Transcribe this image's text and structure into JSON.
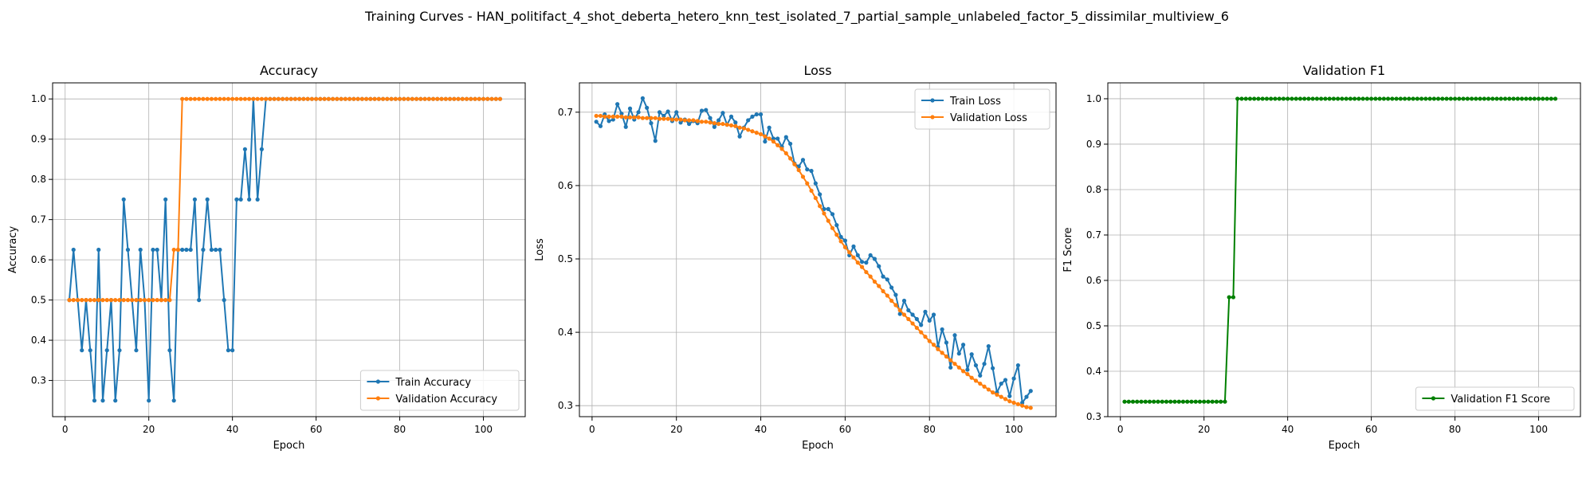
{
  "figure": {
    "title": "Training Curves - HAN_politifact_4_shot_deberta_hetero_knn_test_isolated_7_partial_sample_unlabeled_factor_5_dissimilar_multiview_6"
  },
  "colors": {
    "train": "#1f77b4",
    "validation": "#ff7f0e",
    "f1": "#008000",
    "grid": "#b0b0b0"
  },
  "chart_data": [
    {
      "type": "line",
      "title": "Accuracy",
      "xlabel": "Epoch",
      "ylabel": "Accuracy",
      "xlim": [
        -3,
        110
      ],
      "ylim": [
        0.21,
        1.04
      ],
      "xticks": [
        0,
        20,
        40,
        60,
        80,
        100
      ],
      "yticks": [
        0.3,
        0.4,
        0.5,
        0.6,
        0.7,
        0.8,
        0.9,
        1.0
      ],
      "ytick_labels": [
        "0.3",
        "0.4",
        "0.5",
        "0.6",
        "0.7",
        "0.8",
        "0.9",
        "1.0"
      ],
      "grid": true,
      "legend_position": "lower-right",
      "x": [
        1,
        2,
        3,
        4,
        5,
        6,
        7,
        8,
        9,
        10,
        11,
        12,
        13,
        14,
        15,
        16,
        17,
        18,
        19,
        20,
        21,
        22,
        23,
        24,
        25,
        26,
        27,
        28,
        29,
        30,
        31,
        32,
        33,
        34,
        35,
        36,
        37,
        38,
        39,
        40,
        41,
        42,
        43,
        44,
        45,
        46,
        47,
        48,
        49,
        50,
        51,
        52,
        53,
        54,
        55,
        56,
        57,
        58,
        59,
        60,
        61,
        62,
        63,
        64,
        65,
        66,
        67,
        68,
        69,
        70,
        71,
        72,
        73,
        74,
        75,
        76,
        77,
        78,
        79,
        80,
        81,
        82,
        83,
        84,
        85,
        86,
        87,
        88,
        89,
        90,
        91,
        92,
        93,
        94,
        95,
        96,
        97,
        98,
        99,
        100,
        101,
        102,
        103,
        104
      ],
      "series": [
        {
          "name": "Train Accuracy",
          "color": "#1f77b4",
          "values": [
            0.5,
            0.625,
            0.5,
            0.375,
            0.5,
            0.375,
            0.25,
            0.625,
            0.25,
            0.375,
            0.5,
            0.25,
            0.375,
            0.75,
            0.625,
            0.5,
            0.375,
            0.625,
            0.5,
            0.25,
            0.625,
            0.625,
            0.5,
            0.75,
            0.375,
            0.25,
            0.625,
            0.625,
            0.625,
            0.625,
            0.75,
            0.5,
            0.625,
            0.75,
            0.625,
            0.625,
            0.625,
            0.5,
            0.375,
            0.375,
            0.75,
            0.75,
            0.875,
            0.75,
            1.0,
            0.75,
            0.875,
            1.0,
            1.0,
            1.0,
            1.0,
            1.0,
            1.0,
            1.0,
            1.0,
            1.0,
            1.0,
            1.0,
            1.0,
            1.0,
            1.0,
            1.0,
            1.0,
            1.0,
            1.0,
            1.0,
            1.0,
            1.0,
            1.0,
            1.0,
            1.0,
            1.0,
            1.0,
            1.0,
            1.0,
            1.0,
            1.0,
            1.0,
            1.0,
            1.0,
            1.0,
            1.0,
            1.0,
            1.0,
            1.0,
            1.0,
            1.0,
            1.0,
            1.0,
            1.0,
            1.0,
            1.0,
            1.0,
            1.0,
            1.0,
            1.0,
            1.0,
            1.0,
            1.0,
            1.0,
            1.0,
            1.0,
            1.0,
            1.0
          ]
        },
        {
          "name": "Validation Accuracy",
          "color": "#ff7f0e",
          "values": [
            0.5,
            0.5,
            0.5,
            0.5,
            0.5,
            0.5,
            0.5,
            0.5,
            0.5,
            0.5,
            0.5,
            0.5,
            0.5,
            0.5,
            0.5,
            0.5,
            0.5,
            0.5,
            0.5,
            0.5,
            0.5,
            0.5,
            0.5,
            0.5,
            0.5,
            0.625,
            0.625,
            1.0,
            1.0,
            1.0,
            1.0,
            1.0,
            1.0,
            1.0,
            1.0,
            1.0,
            1.0,
            1.0,
            1.0,
            1.0,
            1.0,
            1.0,
            1.0,
            1.0,
            1.0,
            1.0,
            1.0,
            1.0,
            1.0,
            1.0,
            1.0,
            1.0,
            1.0,
            1.0,
            1.0,
            1.0,
            1.0,
            1.0,
            1.0,
            1.0,
            1.0,
            1.0,
            1.0,
            1.0,
            1.0,
            1.0,
            1.0,
            1.0,
            1.0,
            1.0,
            1.0,
            1.0,
            1.0,
            1.0,
            1.0,
            1.0,
            1.0,
            1.0,
            1.0,
            1.0,
            1.0,
            1.0,
            1.0,
            1.0,
            1.0,
            1.0,
            1.0,
            1.0,
            1.0,
            1.0,
            1.0,
            1.0,
            1.0,
            1.0,
            1.0,
            1.0,
            1.0,
            1.0,
            1.0,
            1.0,
            1.0,
            1.0,
            1.0,
            1.0
          ]
        }
      ]
    },
    {
      "type": "line",
      "title": "Loss",
      "xlabel": "Epoch",
      "ylabel": "Loss",
      "xlim": [
        -3,
        110
      ],
      "ylim": [
        0.285,
        0.74
      ],
      "xticks": [
        0,
        20,
        40,
        60,
        80,
        100
      ],
      "yticks": [
        0.3,
        0.4,
        0.5,
        0.6,
        0.7
      ],
      "ytick_labels": [
        "0.3",
        "0.4",
        "0.5",
        "0.6",
        "0.7"
      ],
      "grid": true,
      "legend_position": "upper-right",
      "x": [
        1,
        2,
        3,
        4,
        5,
        6,
        7,
        8,
        9,
        10,
        11,
        12,
        13,
        14,
        15,
        16,
        17,
        18,
        19,
        20,
        21,
        22,
        23,
        24,
        25,
        26,
        27,
        28,
        29,
        30,
        31,
        32,
        33,
        34,
        35,
        36,
        37,
        38,
        39,
        40,
        41,
        42,
        43,
        44,
        45,
        46,
        47,
        48,
        49,
        50,
        51,
        52,
        53,
        54,
        55,
        56,
        57,
        58,
        59,
        60,
        61,
        62,
        63,
        64,
        65,
        66,
        67,
        68,
        69,
        70,
        71,
        72,
        73,
        74,
        75,
        76,
        77,
        78,
        79,
        80,
        81,
        82,
        83,
        84,
        85,
        86,
        87,
        88,
        89,
        90,
        91,
        92,
        93,
        94,
        95,
        96,
        97,
        98,
        99,
        100,
        101,
        102,
        103,
        104
      ],
      "series": [
        {
          "name": "Train Loss",
          "color": "#1f77b4",
          "values": [
            0.687,
            0.681,
            0.697,
            0.688,
            0.69,
            0.711,
            0.698,
            0.68,
            0.705,
            0.69,
            0.7,
            0.719,
            0.706,
            0.685,
            0.661,
            0.7,
            0.695,
            0.701,
            0.688,
            0.7,
            0.686,
            0.69,
            0.684,
            0.688,
            0.685,
            0.702,
            0.703,
            0.692,
            0.68,
            0.689,
            0.699,
            0.683,
            0.694,
            0.686,
            0.667,
            0.679,
            0.689,
            0.694,
            0.697,
            0.697,
            0.66,
            0.679,
            0.664,
            0.664,
            0.653,
            0.666,
            0.657,
            0.63,
            0.626,
            0.635,
            0.622,
            0.62,
            0.603,
            0.588,
            0.568,
            0.568,
            0.561,
            0.546,
            0.53,
            0.525,
            0.505,
            0.517,
            0.505,
            0.496,
            0.495,
            0.505,
            0.5,
            0.49,
            0.476,
            0.472,
            0.461,
            0.451,
            0.425,
            0.443,
            0.43,
            0.424,
            0.418,
            0.41,
            0.428,
            0.416,
            0.424,
            0.38,
            0.404,
            0.386,
            0.352,
            0.396,
            0.371,
            0.383,
            0.349,
            0.37,
            0.355,
            0.341,
            0.357,
            0.381,
            0.351,
            0.318,
            0.33,
            0.335,
            0.313,
            0.337,
            0.355,
            0.304,
            0.312,
            0.32
          ]
        },
        {
          "name": "Validation Loss",
          "color": "#ff7f0e",
          "values": [
            0.695,
            0.695,
            0.694,
            0.694,
            0.694,
            0.694,
            0.694,
            0.693,
            0.693,
            0.693,
            0.693,
            0.692,
            0.692,
            0.692,
            0.692,
            0.691,
            0.691,
            0.691,
            0.69,
            0.69,
            0.69,
            0.689,
            0.689,
            0.689,
            0.688,
            0.687,
            0.687,
            0.686,
            0.685,
            0.684,
            0.684,
            0.683,
            0.682,
            0.681,
            0.679,
            0.678,
            0.676,
            0.674,
            0.672,
            0.67,
            0.667,
            0.664,
            0.66,
            0.655,
            0.65,
            0.644,
            0.637,
            0.629,
            0.621,
            0.612,
            0.603,
            0.593,
            0.583,
            0.572,
            0.562,
            0.552,
            0.542,
            0.533,
            0.524,
            0.516,
            0.509,
            0.502,
            0.495,
            0.489,
            0.482,
            0.476,
            0.469,
            0.463,
            0.456,
            0.45,
            0.443,
            0.437,
            0.43,
            0.424,
            0.418,
            0.412,
            0.406,
            0.4,
            0.394,
            0.388,
            0.383,
            0.377,
            0.372,
            0.367,
            0.362,
            0.357,
            0.352,
            0.347,
            0.343,
            0.338,
            0.334,
            0.33,
            0.326,
            0.322,
            0.318,
            0.315,
            0.312,
            0.309,
            0.306,
            0.304,
            0.302,
            0.3,
            0.298,
            0.297
          ]
        }
      ]
    },
    {
      "type": "line",
      "title": "Validation F1",
      "xlabel": "Epoch",
      "ylabel": "F1 Score",
      "xlim": [
        -3,
        110
      ],
      "ylim": [
        0.3,
        1.035
      ],
      "xticks": [
        0,
        20,
        40,
        60,
        80,
        100
      ],
      "yticks": [
        0.3,
        0.4,
        0.5,
        0.6,
        0.7,
        0.8,
        0.9,
        1.0
      ],
      "ytick_labels": [
        "0.3",
        "0.4",
        "0.5",
        "0.6",
        "0.7",
        "0.8",
        "0.9",
        "1.0"
      ],
      "grid": true,
      "legend_position": "lower-right",
      "x": [
        1,
        2,
        3,
        4,
        5,
        6,
        7,
        8,
        9,
        10,
        11,
        12,
        13,
        14,
        15,
        16,
        17,
        18,
        19,
        20,
        21,
        22,
        23,
        24,
        25,
        26,
        27,
        28,
        29,
        30,
        31,
        32,
        33,
        34,
        35,
        36,
        37,
        38,
        39,
        40,
        41,
        42,
        43,
        44,
        45,
        46,
        47,
        48,
        49,
        50,
        51,
        52,
        53,
        54,
        55,
        56,
        57,
        58,
        59,
        60,
        61,
        62,
        63,
        64,
        65,
        66,
        67,
        68,
        69,
        70,
        71,
        72,
        73,
        74,
        75,
        76,
        77,
        78,
        79,
        80,
        81,
        82,
        83,
        84,
        85,
        86,
        87,
        88,
        89,
        90,
        91,
        92,
        93,
        94,
        95,
        96,
        97,
        98,
        99,
        100,
        101,
        102,
        103,
        104
      ],
      "series": [
        {
          "name": "Validation F1 Score",
          "color": "#008000",
          "values": [
            0.333,
            0.333,
            0.333,
            0.333,
            0.333,
            0.333,
            0.333,
            0.333,
            0.333,
            0.333,
            0.333,
            0.333,
            0.333,
            0.333,
            0.333,
            0.333,
            0.333,
            0.333,
            0.333,
            0.333,
            0.333,
            0.333,
            0.333,
            0.333,
            0.333,
            0.563,
            0.563,
            1.0,
            1.0,
            1.0,
            1.0,
            1.0,
            1.0,
            1.0,
            1.0,
            1.0,
            1.0,
            1.0,
            1.0,
            1.0,
            1.0,
            1.0,
            1.0,
            1.0,
            1.0,
            1.0,
            1.0,
            1.0,
            1.0,
            1.0,
            1.0,
            1.0,
            1.0,
            1.0,
            1.0,
            1.0,
            1.0,
            1.0,
            1.0,
            1.0,
            1.0,
            1.0,
            1.0,
            1.0,
            1.0,
            1.0,
            1.0,
            1.0,
            1.0,
            1.0,
            1.0,
            1.0,
            1.0,
            1.0,
            1.0,
            1.0,
            1.0,
            1.0,
            1.0,
            1.0,
            1.0,
            1.0,
            1.0,
            1.0,
            1.0,
            1.0,
            1.0,
            1.0,
            1.0,
            1.0,
            1.0,
            1.0,
            1.0,
            1.0,
            1.0,
            1.0,
            1.0,
            1.0,
            1.0,
            1.0,
            1.0,
            1.0,
            1.0,
            1.0
          ]
        }
      ]
    }
  ]
}
